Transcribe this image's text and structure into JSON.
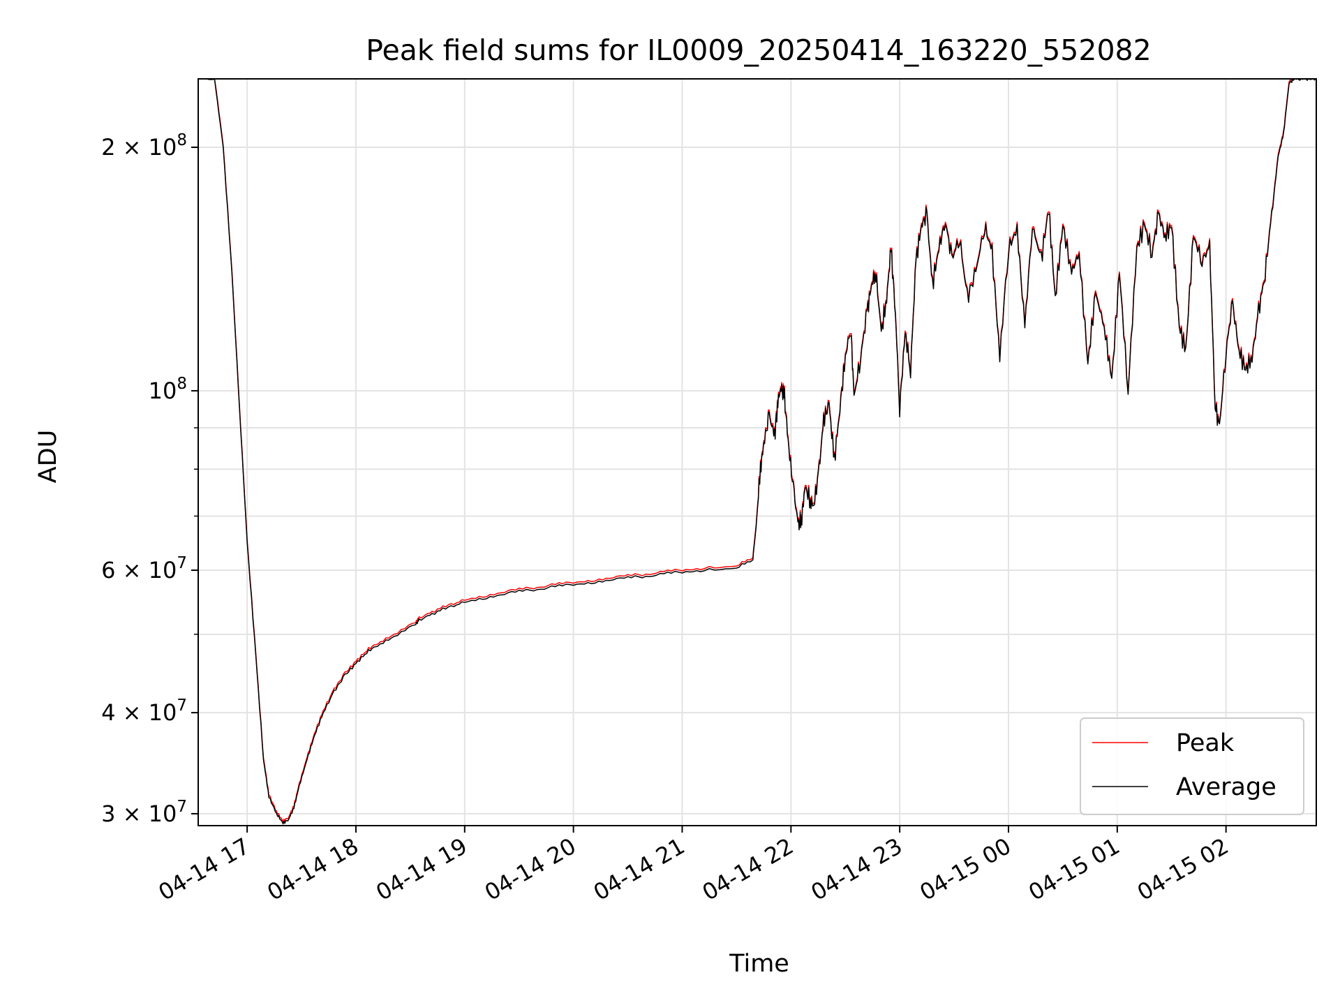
{
  "chart_data": {
    "type": "line",
    "title": "Peak field sums for IL0009_20250414_163220_552082",
    "xlabel": "Time",
    "ylabel": "ADU",
    "yscale": "log",
    "xlim_hours": [
      16.55,
      26.83
    ],
    "ylim": [
      29000000,
      243000000
    ],
    "grid": true,
    "legend_position": "lower right",
    "x_ticks": [
      {
        "label": "04-14 17",
        "hour": 17
      },
      {
        "label": "04-14 18",
        "hour": 18
      },
      {
        "label": "04-14 19",
        "hour": 19
      },
      {
        "label": "04-14 20",
        "hour": 20
      },
      {
        "label": "04-14 21",
        "hour": 21
      },
      {
        "label": "04-14 22",
        "hour": 22
      },
      {
        "label": "04-14 23",
        "hour": 23
      },
      {
        "label": "04-15 00",
        "hour": 24
      },
      {
        "label": "04-15 01",
        "hour": 25
      },
      {
        "label": "04-15 02",
        "hour": 26
      }
    ],
    "y_ticks_major": [
      {
        "value": 30000000,
        "mantissa": "3",
        "exp": "7",
        "show_mantissa": true
      },
      {
        "value": 40000000,
        "mantissa": "4",
        "exp": "7",
        "show_mantissa": true
      },
      {
        "value": 60000000,
        "mantissa": "6",
        "exp": "7",
        "show_mantissa": true
      },
      {
        "value": 100000000,
        "mantissa": "",
        "exp": "8",
        "show_mantissa": false
      },
      {
        "value": 200000000,
        "mantissa": "2",
        "exp": "8",
        "show_mantissa": true
      }
    ],
    "y_ticks_minor": [
      50000000,
      70000000,
      80000000,
      90000000
    ],
    "series": [
      {
        "name": "Peak",
        "color": "#ff0000",
        "offset": 1.006,
        "hours": [
          16.55,
          16.7,
          16.78,
          16.86,
          16.93,
          17.0,
          17.08,
          17.15,
          17.2,
          17.27,
          17.33,
          17.38,
          17.43,
          17.48,
          17.55,
          17.62,
          17.7,
          17.8,
          17.9,
          18.0,
          18.1,
          18.2,
          18.35,
          18.55,
          18.58,
          18.7,
          18.85,
          19.0,
          19.2,
          19.4,
          19.6,
          19.8,
          20.0,
          20.2,
          20.4,
          20.6,
          20.8,
          21.0,
          21.2,
          21.5,
          21.65,
          21.68,
          21.72,
          21.75,
          21.8,
          21.85,
          21.88,
          21.91,
          21.94,
          21.98,
          22.03,
          22.07,
          22.1,
          22.13,
          22.18,
          22.21,
          22.26,
          22.3,
          22.35,
          22.4,
          22.45,
          22.5,
          22.55,
          22.58,
          22.64,
          22.7,
          22.74,
          22.78,
          22.83,
          22.88,
          22.92,
          22.96,
          23.0,
          23.05,
          23.1,
          23.15,
          23.2,
          23.25,
          23.3,
          23.36,
          23.42,
          23.48,
          23.55,
          23.62,
          23.7,
          23.78,
          23.85,
          23.92,
          24.0,
          24.08,
          24.15,
          24.22,
          24.3,
          24.37,
          24.43,
          24.5,
          24.58,
          24.65,
          24.73,
          24.8,
          24.88,
          24.95,
          25.02,
          25.1,
          25.18,
          25.25,
          25.32,
          25.38,
          25.44,
          25.5,
          25.57,
          25.63,
          25.7,
          25.78,
          25.85,
          25.9,
          25.94,
          26.0,
          26.06,
          26.12,
          26.18,
          26.24,
          26.3,
          26.36,
          26.42,
          26.48,
          26.53,
          26.58,
          26.63,
          26.68,
          26.73,
          26.78,
          26.83
        ],
        "values": [
          243000000,
          243000000,
          200000000,
          140000000,
          95000000,
          65000000,
          47000000,
          35000000,
          31500000,
          30000000,
          29200000,
          29500000,
          30500000,
          32500000,
          35000000,
          37500000,
          40000000,
          42500000,
          44500000,
          46000000,
          47500000,
          48500000,
          49500000,
          51500000,
          52000000,
          53000000,
          54000000,
          54800000,
          55500000,
          56200000,
          56700000,
          57200000,
          57600000,
          58000000,
          58500000,
          58900000,
          59300000,
          59700000,
          60000000,
          60300000,
          62000000,
          68000000,
          80000000,
          86000000,
          93000000,
          88000000,
          97000000,
          101000000,
          98000000,
          85000000,
          74000000,
          68000000,
          70000000,
          76000000,
          73000000,
          72000000,
          80000000,
          92000000,
          96000000,
          82000000,
          95000000,
          110000000,
          120000000,
          98000000,
          110000000,
          125000000,
          135000000,
          140000000,
          118000000,
          130000000,
          150000000,
          125000000,
          95000000,
          118000000,
          106000000,
          145000000,
          160000000,
          165000000,
          135000000,
          150000000,
          162000000,
          145000000,
          155000000,
          130000000,
          140000000,
          160000000,
          148000000,
          110000000,
          150000000,
          158000000,
          120000000,
          160000000,
          145000000,
          168000000,
          130000000,
          160000000,
          140000000,
          148000000,
          108000000,
          132000000,
          120000000,
          103000000,
          140000000,
          100000000,
          150000000,
          160000000,
          148000000,
          165000000,
          155000000,
          160000000,
          120000000,
          112000000,
          155000000,
          145000000,
          150000000,
          96000000,
          90000000,
          112000000,
          128000000,
          112000000,
          106000000,
          110000000,
          125000000,
          140000000,
          165000000,
          195000000,
          208000000,
          240000000,
          243000000,
          243000000,
          243000000,
          243000000,
          243000000
        ]
      },
      {
        "name": "Average",
        "color": "#000000",
        "offset": 1.0,
        "hours": [
          16.55,
          16.7,
          16.78,
          16.86,
          16.93,
          17.0,
          17.08,
          17.15,
          17.2,
          17.27,
          17.33,
          17.38,
          17.43,
          17.48,
          17.55,
          17.62,
          17.7,
          17.8,
          17.9,
          18.0,
          18.1,
          18.2,
          18.35,
          18.55,
          18.58,
          18.7,
          18.85,
          19.0,
          19.2,
          19.4,
          19.6,
          19.8,
          20.0,
          20.2,
          20.4,
          20.6,
          20.8,
          21.0,
          21.2,
          21.5,
          21.65,
          21.68,
          21.72,
          21.75,
          21.8,
          21.85,
          21.88,
          21.91,
          21.94,
          21.98,
          22.03,
          22.07,
          22.1,
          22.13,
          22.18,
          22.21,
          22.26,
          22.3,
          22.35,
          22.4,
          22.45,
          22.5,
          22.55,
          22.58,
          22.64,
          22.7,
          22.74,
          22.78,
          22.83,
          22.88,
          22.92,
          22.96,
          23.0,
          23.05,
          23.1,
          23.15,
          23.2,
          23.25,
          23.3,
          23.36,
          23.42,
          23.48,
          23.55,
          23.62,
          23.7,
          23.78,
          23.85,
          23.92,
          24.0,
          24.08,
          24.15,
          24.22,
          24.3,
          24.37,
          24.43,
          24.5,
          24.58,
          24.65,
          24.73,
          24.8,
          24.88,
          24.95,
          25.02,
          25.1,
          25.18,
          25.25,
          25.32,
          25.38,
          25.44,
          25.5,
          25.57,
          25.63,
          25.7,
          25.78,
          25.85,
          25.9,
          25.94,
          26.0,
          26.06,
          26.12,
          26.18,
          26.24,
          26.3,
          26.36,
          26.42,
          26.48,
          26.53,
          26.58,
          26.63,
          26.68,
          26.73,
          26.78,
          26.83
        ],
        "values": [
          243000000,
          243000000,
          200000000,
          140000000,
          95000000,
          65000000,
          47000000,
          35000000,
          31500000,
          30000000,
          29200000,
          29500000,
          30500000,
          32500000,
          35000000,
          37500000,
          40000000,
          42500000,
          44500000,
          46000000,
          47500000,
          48500000,
          49500000,
          51500000,
          52000000,
          53000000,
          54000000,
          54800000,
          55500000,
          56200000,
          56700000,
          57200000,
          57600000,
          58000000,
          58500000,
          58900000,
          59300000,
          59700000,
          60000000,
          60300000,
          62000000,
          68000000,
          80000000,
          86000000,
          93000000,
          88000000,
          97000000,
          101000000,
          98000000,
          85000000,
          74000000,
          68000000,
          70000000,
          76000000,
          73000000,
          72000000,
          80000000,
          92000000,
          96000000,
          82000000,
          95000000,
          110000000,
          120000000,
          98000000,
          110000000,
          125000000,
          135000000,
          140000000,
          118000000,
          130000000,
          150000000,
          125000000,
          95000000,
          118000000,
          106000000,
          145000000,
          160000000,
          165000000,
          135000000,
          150000000,
          162000000,
          145000000,
          155000000,
          130000000,
          140000000,
          160000000,
          148000000,
          110000000,
          150000000,
          158000000,
          120000000,
          160000000,
          145000000,
          168000000,
          130000000,
          160000000,
          140000000,
          148000000,
          108000000,
          132000000,
          120000000,
          103000000,
          140000000,
          100000000,
          150000000,
          160000000,
          148000000,
          165000000,
          155000000,
          160000000,
          120000000,
          112000000,
          155000000,
          145000000,
          150000000,
          96000000,
          90000000,
          112000000,
          128000000,
          112000000,
          106000000,
          110000000,
          125000000,
          140000000,
          165000000,
          195000000,
          208000000,
          240000000,
          243000000,
          243000000,
          243000000,
          243000000,
          243000000
        ]
      }
    ]
  }
}
